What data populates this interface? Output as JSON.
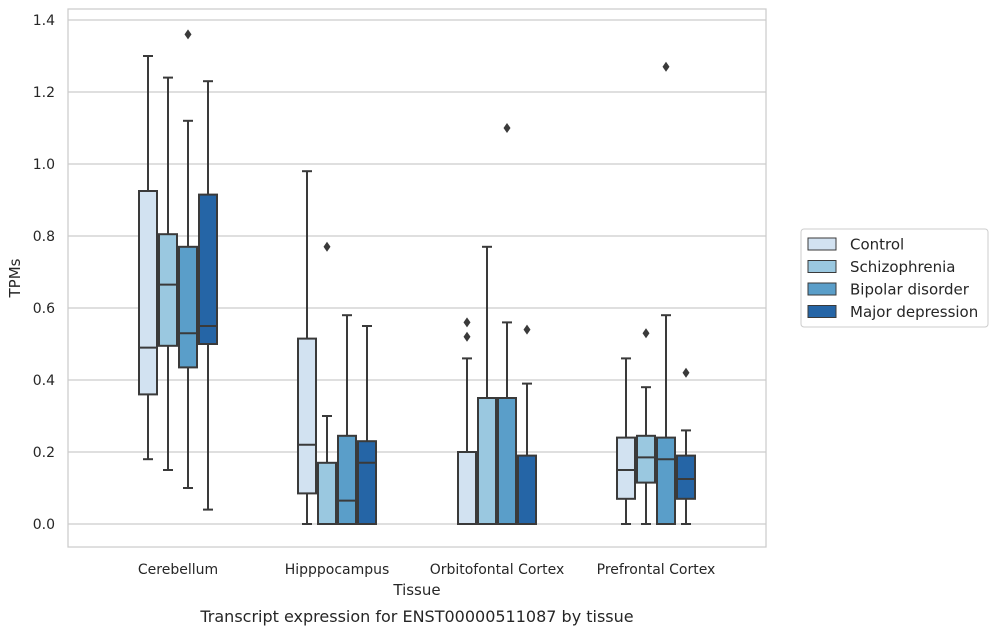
{
  "chart_data": {
    "type": "box",
    "title": "",
    "caption": "Transcript expression for ENST00000511087 by tissue",
    "xlabel": "Tissue",
    "ylabel": "TPMs",
    "ylim": [
      -0.065,
      1.43
    ],
    "yticks": [
      0.0,
      0.2,
      0.4,
      0.6,
      0.8,
      1.0,
      1.2,
      1.4
    ],
    "ytick_labels": [
      "0.0",
      "0.2",
      "0.4",
      "0.6",
      "0.8",
      "1.0",
      "1.2",
      "1.4"
    ],
    "grid": "horizontal",
    "legend_position": "center-right, outside plot",
    "categories": [
      "Cerebellum",
      "Hipppocampus",
      "Orbitofontal Cortex",
      "Prefrontal Cortex"
    ],
    "series": [
      {
        "name": "Control",
        "color": "#d2e2f1",
        "boxes": [
          {
            "whislo": 0.18,
            "q1": 0.36,
            "med": 0.49,
            "q3": 0.925,
            "whishi": 1.3,
            "fliers": []
          },
          {
            "whislo": 0.0,
            "q1": 0.085,
            "med": 0.22,
            "q3": 0.515,
            "whishi": 0.98,
            "fliers": []
          },
          {
            "whislo": 0.0,
            "q1": 0.0,
            "med": 0.0,
            "q3": 0.2,
            "whishi": 0.46,
            "fliers": [
              0.52,
              0.56
            ]
          },
          {
            "whislo": 0.0,
            "q1": 0.07,
            "med": 0.15,
            "q3": 0.24,
            "whishi": 0.46,
            "fliers": []
          }
        ]
      },
      {
        "name": "Schizophrenia",
        "color": "#9ac8e0",
        "boxes": [
          {
            "whislo": 0.15,
            "q1": 0.495,
            "med": 0.665,
            "q3": 0.805,
            "whishi": 1.24,
            "fliers": []
          },
          {
            "whislo": 0.0,
            "q1": 0.0,
            "med": 0.0,
            "q3": 0.17,
            "whishi": 0.3,
            "fliers": [
              0.77
            ]
          },
          {
            "whislo": 0.0,
            "q1": 0.0,
            "med": 0.0,
            "q3": 0.35,
            "whishi": 0.77,
            "fliers": []
          },
          {
            "whislo": 0.0,
            "q1": 0.115,
            "med": 0.185,
            "q3": 0.245,
            "whishi": 0.38,
            "fliers": [
              0.53
            ]
          }
        ]
      },
      {
        "name": "Bipolar disorder",
        "color": "#5a9ec9",
        "boxes": [
          {
            "whislo": 0.1,
            "q1": 0.435,
            "med": 0.53,
            "q3": 0.77,
            "whishi": 1.12,
            "fliers": [
              1.36
            ]
          },
          {
            "whislo": 0.0,
            "q1": 0.0,
            "med": 0.065,
            "q3": 0.245,
            "whishi": 0.58,
            "fliers": []
          },
          {
            "whislo": 0.0,
            "q1": 0.0,
            "med": 0.0,
            "q3": 0.35,
            "whishi": 0.56,
            "fliers": [
              1.1
            ]
          },
          {
            "whislo": 0.0,
            "q1": 0.0,
            "med": 0.18,
            "q3": 0.24,
            "whishi": 0.58,
            "fliers": [
              1.27
            ]
          }
        ]
      },
      {
        "name": "Major depression",
        "color": "#2565a6",
        "boxes": [
          {
            "whislo": 0.04,
            "q1": 0.5,
            "med": 0.55,
            "q3": 0.915,
            "whishi": 1.23,
            "fliers": []
          },
          {
            "whislo": 0.0,
            "q1": 0.0,
            "med": 0.17,
            "q3": 0.23,
            "whishi": 0.55,
            "fliers": []
          },
          {
            "whislo": 0.0,
            "q1": 0.0,
            "med": 0.0,
            "q3": 0.19,
            "whishi": 0.39,
            "fliers": [
              0.54
            ]
          },
          {
            "whislo": 0.0,
            "q1": 0.07,
            "med": 0.125,
            "q3": 0.19,
            "whishi": 0.26,
            "fliers": [
              0.42
            ]
          }
        ]
      }
    ]
  }
}
